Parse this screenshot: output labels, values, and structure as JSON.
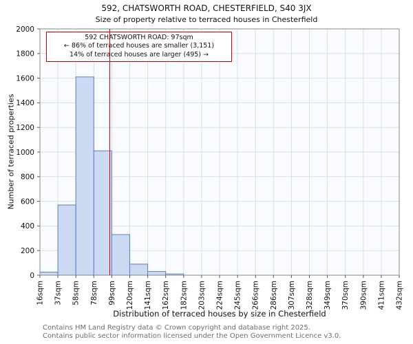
{
  "title": "592, CHATSWORTH ROAD, CHESTERFIELD, S40 3JX",
  "subtitle": "Size of property relative to terraced houses in Chesterfield",
  "annotation": {
    "line1": "592 CHATSWORTH ROAD: 97sqm",
    "line2": "← 86% of terraced houses are smaller (3,151)",
    "line3": "14% of terraced houses are larger (495) →"
  },
  "footer": {
    "line1": "Contains HM Land Registry data © Crown copyright and database right 2025.",
    "line2": "Contains public sector information licensed under the Open Government Licence v3.0."
  },
  "chart_data": {
    "type": "bar",
    "title": "592, CHATSWORTH ROAD, CHESTERFIELD, S40 3JX",
    "subtitle": "Size of property relative to terraced houses in Chesterfield",
    "xlabel": "Distribution of terraced houses by size in Chesterfield",
    "ylabel": "Number of terraced properties",
    "ylim": [
      0,
      2000
    ],
    "ytick_step": 200,
    "grid": true,
    "legend": false,
    "bin_edges_sqm": [
      16,
      37,
      58,
      78,
      99,
      120,
      141,
      162,
      182,
      203,
      224,
      245,
      266,
      286,
      307,
      328,
      349,
      370,
      390,
      411,
      432
    ],
    "tick_labels": [
      "16sqm",
      "37sqm",
      "58sqm",
      "78sqm",
      "99sqm",
      "120sqm",
      "141sqm",
      "162sqm",
      "182sqm",
      "203sqm",
      "224sqm",
      "245sqm",
      "266sqm",
      "286sqm",
      "307sqm",
      "328sqm",
      "349sqm",
      "370sqm",
      "390sqm",
      "411sqm",
      "432sqm"
    ],
    "values": [
      25,
      570,
      1610,
      1010,
      330,
      90,
      30,
      10,
      0,
      0,
      0,
      0,
      0,
      0,
      0,
      0,
      0,
      0,
      0,
      0
    ],
    "marker_value_sqm": 97,
    "marker_label": "592 CHATSWORTH ROAD: 97sqm",
    "smaller_pct": 86,
    "smaller_count": "3,151",
    "larger_pct": 14,
    "larger_count": "495",
    "colors": {
      "bar_fill": "#ccd9f2",
      "bar_border": "#5b7fc0",
      "marker_line": "#cc0000",
      "grid": "#d8deea",
      "plot_bg": "#fafbfe",
      "spine": "#888888"
    }
  }
}
